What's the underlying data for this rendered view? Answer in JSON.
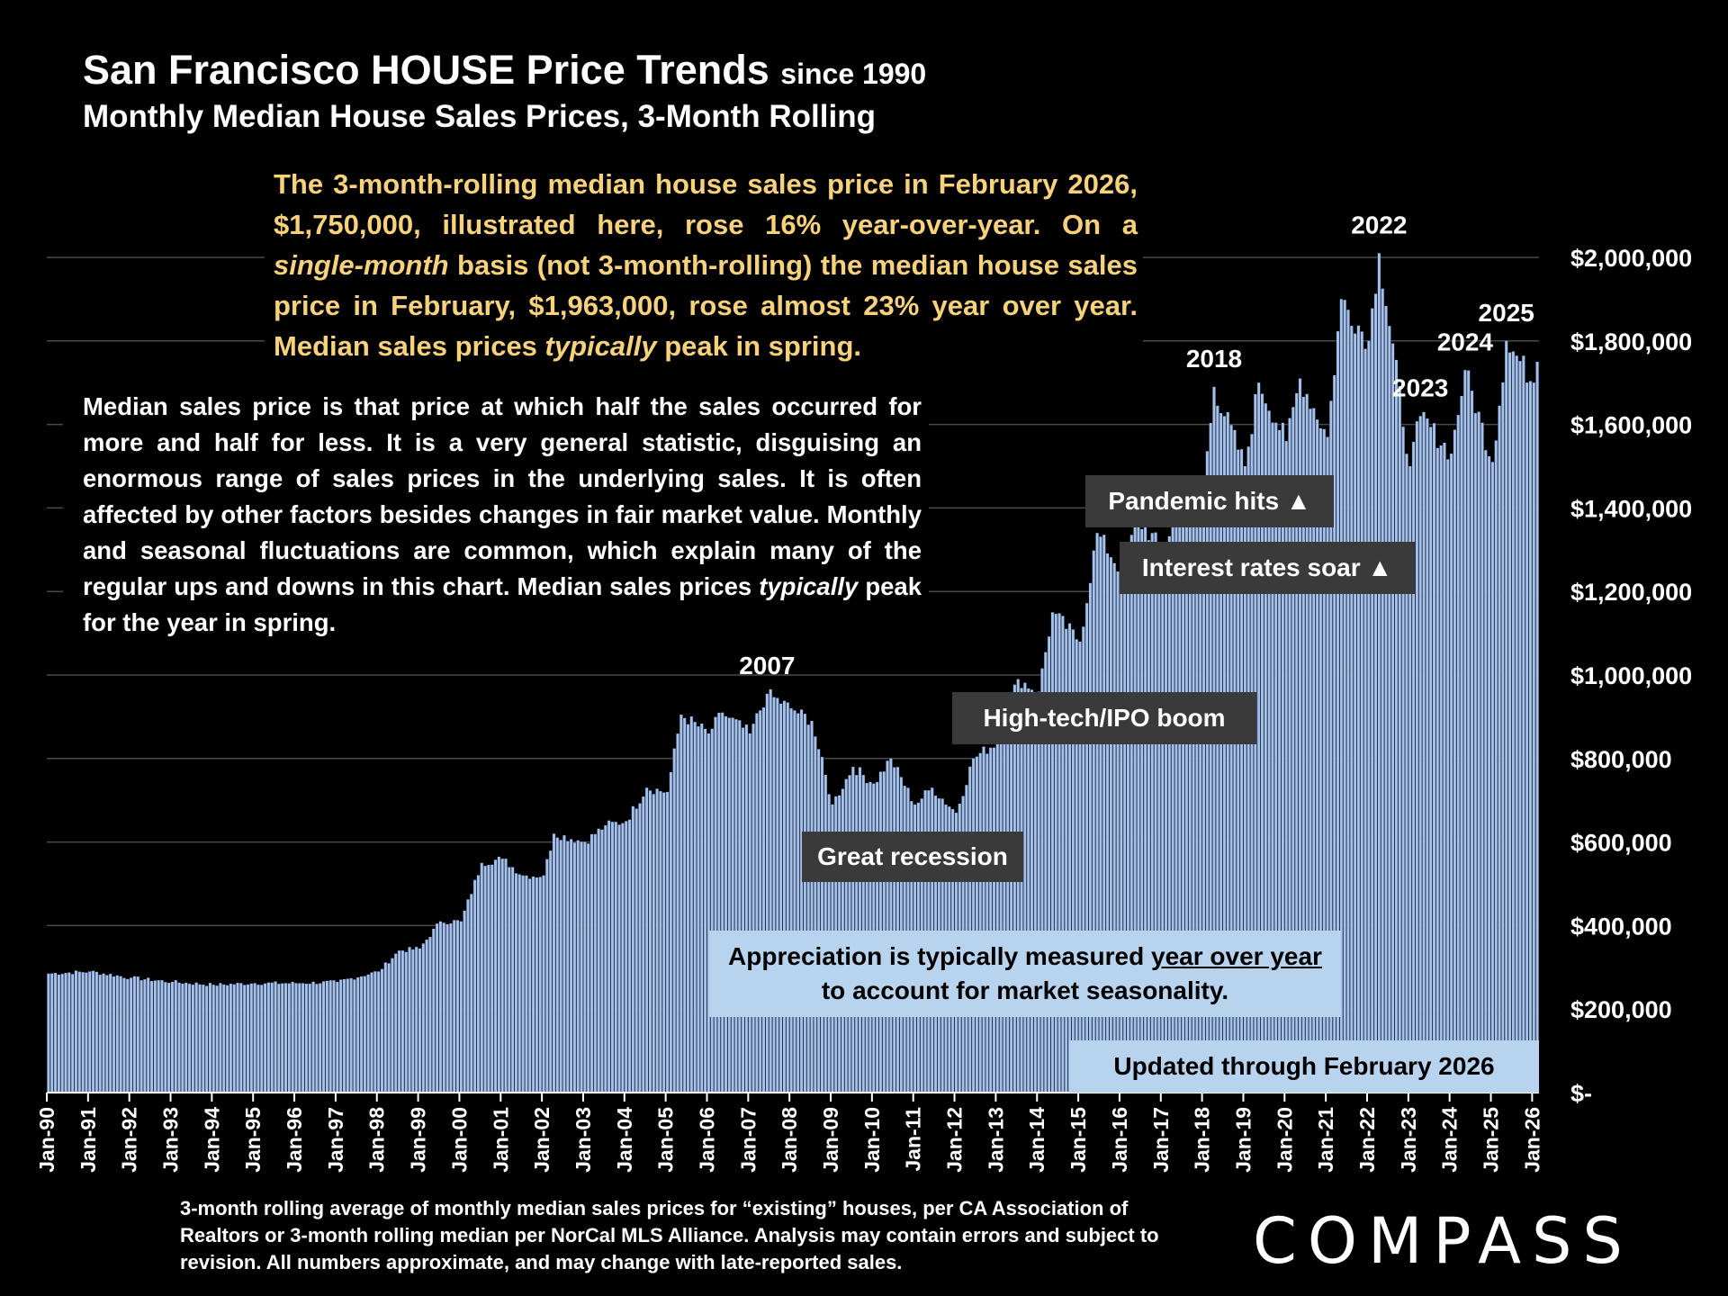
{
  "header": {
    "title_main": "San Francisco HOUSE Price Trends",
    "title_since": "since 1990",
    "subtitle": "Monthly Median House Sales Prices, 3-Month Rolling"
  },
  "callout_yellow": {
    "p1": "The 3-month-rolling median house sales price in February 2026, $1,750,000, illustrated here, rose 16% year-over-year. On a ",
    "em1": "single-month",
    "p2": " basis (not 3-month-rolling) the median house sales price in February, $1,963,000, rose almost 23% year over year. Median sales prices ",
    "em2": "typically",
    "p3": " peak in spring."
  },
  "callout_median": {
    "p1": "Median sales price is that price at which half the sales occurred for more and half for less. It is a very general statistic, disguising an enormous range of sales prices in the underlying sales. It is often affected by other factors besides changes in fair market value. Monthly and seasonal fluctuations are common, which explain many of the regular ups and downs in this chart. Median sales prices ",
    "em1": "typically",
    "p2": " peak for the year in spring."
  },
  "annotations": {
    "pandemic": "Pandemic hits ▲",
    "interest": "Interest rates soar ▲",
    "hightech": "High-tech/IPO boom",
    "recession": "Great recession"
  },
  "appreciation": {
    "line1_pre": "Appreciation is typically measured ",
    "line1_u": "year over year",
    "line2": "to account for market seasonality."
  },
  "updated": "Updated through February 2026",
  "footnote": "3-month rolling average of monthly median sales prices for “existing” houses, per CA Association of Realtors or 3-month rolling median per NorCal MLS Alliance. Analysis may contain errors and subject to revision. All numbers approximate, and may change with late-reported sales.",
  "logo": "COMPASS",
  "colors": {
    "bar": "#a6c1ea",
    "bar_dark": "#1b2940",
    "grid": "#4a4a4a",
    "highlight_text": "#f7d27a",
    "label_bg": "#3a3a3a",
    "note_bg": "#b8d3ee"
  },
  "chart_data": {
    "type": "bar",
    "title": "San Francisco HOUSE Price Trends since 1990",
    "subtitle": "Monthly Median House Sales Prices, 3-Month Rolling",
    "x_start": "Jan-90",
    "x_end": "Feb-26",
    "x_tick_labels": [
      "Jan-90",
      "Jan-91",
      "Jan-92",
      "Jan-93",
      "Jan-94",
      "Jan-95",
      "Jan-96",
      "Jan-97",
      "Jan-98",
      "Jan-99",
      "Jan-00",
      "Jan-01",
      "Jan-02",
      "Jan-03",
      "Jan-04",
      "Jan-05",
      "Jan-06",
      "Jan-07",
      "Jan-08",
      "Jan-09",
      "Jan-10",
      "Jan-11",
      "Jan-12",
      "Jan-13",
      "Jan-14",
      "Jan-15",
      "Jan-16",
      "Jan-17",
      "Jan-18",
      "Jan-19",
      "Jan-20",
      "Jan-21",
      "Jan-22",
      "Jan-23",
      "Jan-24",
      "Jan-25",
      "Jan-26"
    ],
    "y_tick_labels": [
      "$-",
      "$200,000",
      "$400,000",
      "$600,000",
      "$800,000",
      "$1,000,000",
      "$1,200,000",
      "$1,400,000",
      "$1,600,000",
      "$1,800,000",
      "$2,000,000"
    ],
    "ylim": [
      0,
      2000000
    ],
    "grid": true,
    "monthly_approx_keypoints": [
      [
        "Jan-90",
        285000
      ],
      [
        "Jan-91",
        290000
      ],
      [
        "Jan-92",
        275000
      ],
      [
        "Jan-93",
        265000
      ],
      [
        "Jan-94",
        258000
      ],
      [
        "Jan-95",
        262000
      ],
      [
        "Jan-96",
        262000
      ],
      [
        "Jan-97",
        265000
      ],
      [
        "Jan-98",
        290000
      ],
      [
        "Jul-98",
        340000
      ],
      [
        "Jan-99",
        345000
      ],
      [
        "Jul-99",
        410000
      ],
      [
        "Jan-00",
        410000
      ],
      [
        "Jul-00",
        550000
      ],
      [
        "Jan-01",
        560000
      ],
      [
        "Jul-01",
        520000
      ],
      [
        "Jan-02",
        520000
      ],
      [
        "Apr-02",
        620000
      ],
      [
        "Jan-03",
        600000
      ],
      [
        "Jul-03",
        640000
      ],
      [
        "Jan-04",
        650000
      ],
      [
        "Jul-04",
        730000
      ],
      [
        "Jan-05",
        720000
      ],
      [
        "May-05",
        905000
      ],
      [
        "Jan-06",
        860000
      ],
      [
        "May-06",
        910000
      ],
      [
        "Jan-07",
        860000
      ],
      [
        "Jun-07",
        955000
      ],
      [
        "Jan-08",
        920000
      ],
      [
        "Jul-08",
        890000
      ],
      [
        "Jan-09",
        690000
      ],
      [
        "Jul-09",
        780000
      ],
      [
        "Jan-10",
        740000
      ],
      [
        "Jun-10",
        800000
      ],
      [
        "Jan-11",
        690000
      ],
      [
        "Jun-11",
        730000
      ],
      [
        "Jan-12",
        670000
      ],
      [
        "Jun-12",
        800000
      ],
      [
        "Jan-13",
        840000
      ],
      [
        "Jul-13",
        990000
      ],
      [
        "Jan-14",
        960000
      ],
      [
        "May-14",
        1150000
      ],
      [
        "Jan-15",
        1080000
      ],
      [
        "Jun-15",
        1340000
      ],
      [
        "Jan-16",
        1250000
      ],
      [
        "Jun-16",
        1370000
      ],
      [
        "Jan-17",
        1300000
      ],
      [
        "Jul-17",
        1420000
      ],
      [
        "Jan-18",
        1450000
      ],
      [
        "Apr-18",
        1690000
      ],
      [
        "Jan-19",
        1500000
      ],
      [
        "May-19",
        1700000
      ],
      [
        "Jan-20",
        1560000
      ],
      [
        "May-20",
        1710000
      ],
      [
        "Jan-21",
        1570000
      ],
      [
        "May-21",
        1900000
      ],
      [
        "Jan-22",
        1800000
      ],
      [
        "Apr-22",
        2010000
      ],
      [
        "Jan-23",
        1500000
      ],
      [
        "Apr-23",
        1620000
      ],
      [
        "Jan-24",
        1530000
      ],
      [
        "May-24",
        1730000
      ],
      [
        "Jan-25",
        1510000
      ],
      [
        "May-25",
        1800000
      ],
      [
        "Jan-26",
        1700000
      ],
      [
        "Feb-26",
        1750000
      ]
    ],
    "year_labels": [
      {
        "label": "2007",
        "month": "Jun-07"
      },
      {
        "label": "2018",
        "month": "Apr-18"
      },
      {
        "label": "2022",
        "month": "Apr-22"
      },
      {
        "label": "2023",
        "month": "Apr-23"
      },
      {
        "label": "2024",
        "month": "May-24"
      },
      {
        "label": "2025",
        "month": "May-25"
      }
    ]
  }
}
